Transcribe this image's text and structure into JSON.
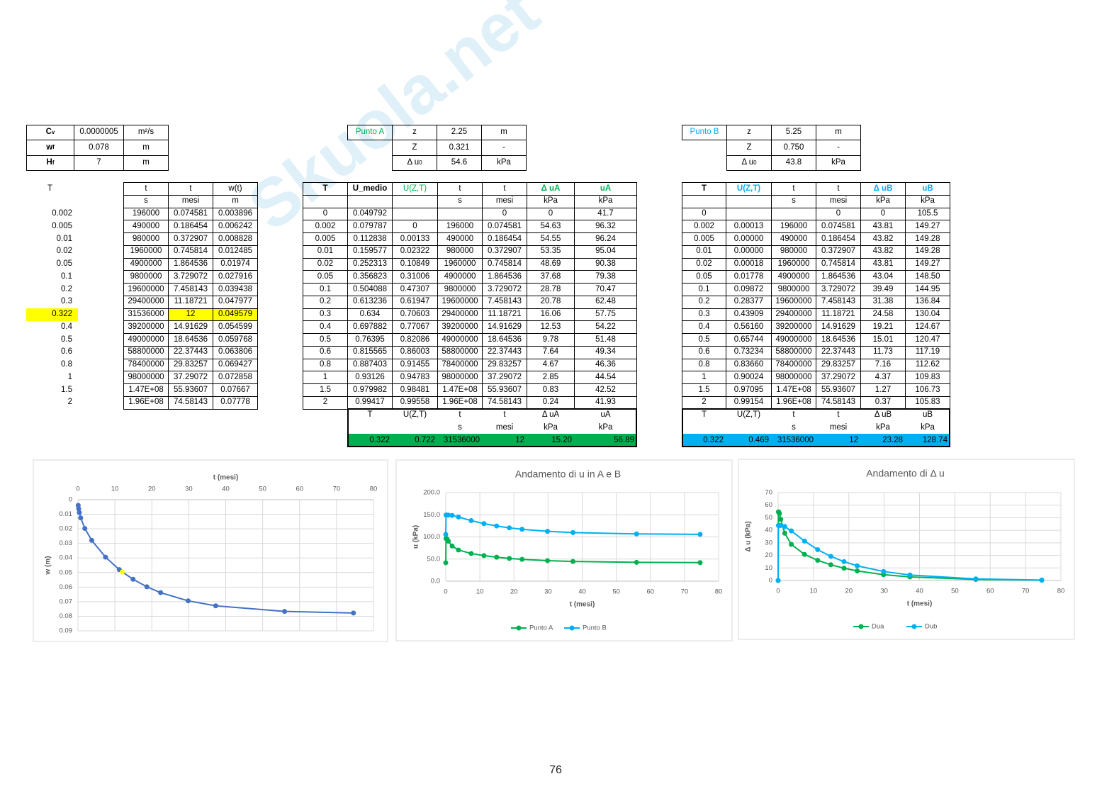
{
  "watermark": "Skuola.net",
  "page_number": "76",
  "tables": {
    "params": {
      "rows": [
        [
          {
            "text": "C",
            "sub": "v"
          },
          "0.0000005",
          "m²/s"
        ],
        [
          {
            "text": "w",
            "sub": "f"
          },
          "0.078",
          "m"
        ],
        [
          {
            "text": "H",
            "sub": "f"
          },
          "7",
          "m"
        ]
      ]
    },
    "punto_a": {
      "rows": [
        [
          "Punto A",
          "z",
          "2.25",
          "m"
        ],
        [
          null,
          "Z",
          "0.321",
          "-"
        ],
        [
          null,
          {
            "text": "Δ u",
            "sub": "0"
          },
          "54.6",
          "kPa"
        ]
      ]
    },
    "punto_b": {
      "rows": [
        [
          "Punto B",
          "z",
          "5.25",
          "m"
        ],
        [
          null,
          "Z",
          "0.750",
          "-"
        ],
        [
          null,
          {
            "text": "Δ u",
            "sub": "0"
          },
          "43.8",
          "kPa"
        ]
      ]
    },
    "w_table": {
      "rows": [
        [
          "T",
          "t",
          "t",
          "w(t)"
        ],
        [
          null,
          "s",
          "mesi",
          "m"
        ],
        [
          "0.002",
          "196000",
          "0.074581",
          "0.003896"
        ],
        [
          "0.005",
          "490000",
          "0.186454",
          "0.006242"
        ],
        [
          "0.01",
          "980000",
          "0.372907",
          "0.008828"
        ],
        [
          "0.02",
          "1960000",
          "0.745814",
          "0.012485"
        ],
        [
          "0.05",
          "4900000",
          "1.864536",
          "0.01974"
        ],
        [
          "0.1",
          "9800000",
          "3.729072",
          "0.027916"
        ],
        [
          "0.2",
          "19600000",
          "7.458143",
          "0.039438"
        ],
        [
          "0.3",
          "29400000",
          "11.18721",
          "0.047977"
        ],
        [
          "0.322",
          "31536000",
          "12",
          "0.049579"
        ],
        [
          "0.4",
          "39200000",
          "14.91629",
          "0.054599"
        ],
        [
          "0.5",
          "49000000",
          "18.64536",
          "0.059768"
        ],
        [
          "0.6",
          "58800000",
          "22.37443",
          "0.063806"
        ],
        [
          "0.8",
          "78400000",
          "29.83257",
          "0.069427"
        ],
        [
          "1",
          "98000000",
          "37.29072",
          "0.072858"
        ],
        [
          "1.5",
          "1.47E+08",
          "55.93607",
          "0.07667"
        ],
        [
          "2",
          "1.96E+08",
          "74.58143",
          "0.07778"
        ]
      ]
    },
    "table_a": {
      "rows": [
        [
          "T",
          "U_medio",
          "U(Z,T)",
          "t",
          "t",
          "Δ uA",
          "uA"
        ],
        [
          null,
          null,
          null,
          "s",
          "mesi",
          "kPa",
          "kPa"
        ],
        [
          "0",
          "0.049792",
          null,
          null,
          "0",
          "0",
          "41.7"
        ],
        [
          "0.002",
          "0.079787",
          "0",
          "196000",
          "0.074581",
          "54.63",
          "96.32"
        ],
        [
          "0.005",
          "0.112838",
          "0.00133",
          "490000",
          "0.186454",
          "54.55",
          "96.24"
        ],
        [
          "0.01",
          "0.159577",
          "0.02322",
          "980000",
          "0.372907",
          "53.35",
          "95.04"
        ],
        [
          "0.02",
          "0.252313",
          "0.10849",
          "1960000",
          "0.745814",
          "48.69",
          "90.38"
        ],
        [
          "0.05",
          "0.356823",
          "0.31006",
          "4900000",
          "1.864536",
          "37.68",
          "79.38"
        ],
        [
          "0.1",
          "0.504088",
          "0.47307",
          "9800000",
          "3.729072",
          "28.78",
          "70.47"
        ],
        [
          "0.2",
          "0.613236",
          "0.61947",
          "19600000",
          "7.458143",
          "20.78",
          "62.48"
        ],
        [
          "0.3",
          "0.634",
          "0.70603",
          "29400000",
          "11.18721",
          "16.06",
          "57.75"
        ],
        [
          "0.4",
          "0.697882",
          "0.77067",
          "39200000",
          "14.91629",
          "12.53",
          "54.22"
        ],
        [
          "0.5",
          "0.76395",
          "0.82086",
          "49000000",
          "18.64536",
          "9.78",
          "51.48"
        ],
        [
          "0.6",
          "0.815565",
          "0.86003",
          "58800000",
          "22.37443",
          "7.64",
          "49.34"
        ],
        [
          "0.8",
          "0.887403",
          "0.91455",
          "78400000",
          "29.83257",
          "4.67",
          "46.36"
        ],
        [
          "1",
          "0.93126",
          "0.94783",
          "98000000",
          "37.29072",
          "2.85",
          "44.54"
        ],
        [
          "1.5",
          "0.979982",
          "0.98481",
          "1.47E+08",
          "55.93607",
          "0.83",
          "42.52"
        ],
        [
          "2",
          "0.99417",
          "0.99558",
          "1.96E+08",
          "74.58143",
          "0.24",
          "41.93"
        ]
      ]
    },
    "summary_a": {
      "rows": [
        [
          "T",
          "U(Z,T)",
          "t",
          "t",
          "Δ uA",
          "uA"
        ],
        [
          null,
          null,
          "s",
          "mesi",
          "kPa",
          "kPa"
        ],
        [
          "0.322",
          "0.722",
          "31536000",
          "12",
          "15.20",
          "56.89"
        ]
      ]
    },
    "table_b": {
      "rows": [
        [
          "T",
          "U(Z,T)",
          "t",
          "t",
          "Δ uB",
          "uB"
        ],
        [
          null,
          null,
          "s",
          "mesi",
          "kPa",
          "kPa"
        ],
        [
          "0",
          null,
          null,
          "0",
          "0",
          "105.5"
        ],
        [
          "0.002",
          "0.00013",
          "196000",
          "0.074581",
          "43.81",
          "149.27"
        ],
        [
          "0.005",
          "0.00000",
          "490000",
          "0.186454",
          "43.82",
          "149.28"
        ],
        [
          "0.01",
          "0.00000",
          "980000",
          "0.372907",
          "43.82",
          "149.28"
        ],
        [
          "0.02",
          "0.00018",
          "1960000",
          "0.745814",
          "43.81",
          "149.27"
        ],
        [
          "0.05",
          "0.01778",
          "4900000",
          "1.864536",
          "43.04",
          "148.50"
        ],
        [
          "0.1",
          "0.09872",
          "9800000",
          "3.729072",
          "39.49",
          "144.95"
        ],
        [
          "0.2",
          "0.28377",
          "19600000",
          "7.458143",
          "31.38",
          "136.84"
        ],
        [
          "0.3",
          "0.43909",
          "29400000",
          "11.18721",
          "24.58",
          "130.04"
        ],
        [
          "0.4",
          "0.56160",
          "39200000",
          "14.91629",
          "19.21",
          "124.67"
        ],
        [
          "0.5",
          "0.65744",
          "49000000",
          "18.64536",
          "15.01",
          "120.47"
        ],
        [
          "0.6",
          "0.73234",
          "58800000",
          "22.37443",
          "11.73",
          "117.19"
        ],
        [
          "0.8",
          "0.83660",
          "78400000",
          "29.83257",
          "7.16",
          "112.62"
        ],
        [
          "1",
          "0.90024",
          "98000000",
          "37.29072",
          "4.37",
          "109.83"
        ],
        [
          "1.5",
          "0.97095",
          "1.47E+08",
          "55.93607",
          "1.27",
          "106.73"
        ],
        [
          "2",
          "0.99154",
          "1.96E+08",
          "74.58143",
          "0.37",
          "105.83"
        ]
      ]
    },
    "summary_b": {
      "rows": [
        [
          "T",
          "U(Z,T)",
          "t",
          "t",
          "Δ uB",
          "uB"
        ],
        [
          null,
          null,
          "s",
          "mesi",
          "kPa",
          "kPa"
        ],
        [
          "0.322",
          "0.469",
          "31536000",
          "12",
          "23.28",
          "128.74"
        ]
      ]
    }
  },
  "chart_data": [
    {
      "type": "line",
      "xlabel": "t (mesi)",
      "ylabel": "w (m)",
      "x": [
        0.074581,
        0.186454,
        0.372907,
        0.745814,
        1.864536,
        3.729072,
        7.458143,
        11.18721,
        12,
        14.91629,
        18.64536,
        22.37443,
        29.83257,
        37.29072,
        55.93607,
        74.58143
      ],
      "series": [
        {
          "color": "#4472c4",
          "values": [
            0.003896,
            0.006242,
            0.008828,
            0.012485,
            0.01974,
            0.027916,
            0.039438,
            0.047977,
            0.049579,
            0.054599,
            0.059768,
            0.063806,
            0.069427,
            0.072858,
            0.07667,
            0.07778
          ],
          "highlight_index": 8,
          "highlight_color": "#ffff00"
        }
      ],
      "xlim": [
        0,
        80
      ],
      "xticks": [
        0,
        10,
        20,
        30,
        40,
        50,
        60,
        70,
        80
      ],
      "ylim": [
        0,
        0.09
      ],
      "yticks": [
        0,
        0.01,
        0.02,
        0.03,
        0.04,
        0.05,
        0.06,
        0.07,
        0.08,
        0.09
      ],
      "x_axis_position": "top",
      "y_reversed": true,
      "grid": true
    },
    {
      "type": "line",
      "title": "Andamento di u in A e B",
      "xlabel": "t (mesi)",
      "ylabel": "u (kPa)",
      "x": [
        0,
        0.074581,
        0.186454,
        0.372907,
        0.745814,
        1.864536,
        3.729072,
        7.458143,
        11.18721,
        14.91629,
        18.64536,
        22.37443,
        29.83257,
        37.29072,
        55.93607,
        74.58143
      ],
      "series": [
        {
          "name": "Punto A",
          "color": "#00b050",
          "values": [
            41.7,
            96.32,
            96.24,
            95.04,
            90.38,
            79.38,
            70.47,
            62.48,
            57.75,
            54.22,
            51.48,
            49.34,
            46.36,
            44.54,
            42.52,
            41.93
          ]
        },
        {
          "name": "Punto B",
          "color": "#00b0f0",
          "values": [
            105.5,
            149.27,
            149.28,
            149.28,
            149.27,
            148.5,
            144.95,
            136.84,
            130.04,
            124.67,
            120.47,
            117.19,
            112.62,
            109.83,
            106.73,
            105.83
          ]
        }
      ],
      "xlim": [
        0,
        80
      ],
      "xticks": [
        0,
        10,
        20,
        30,
        40,
        50,
        60,
        70,
        80
      ],
      "ylim": [
        0,
        200
      ],
      "yticks": [
        {
          "value": 0,
          "label": "0.0"
        },
        {
          "value": 50,
          "label": "50.0"
        },
        {
          "value": 100,
          "label": "100.0"
        },
        {
          "value": 150,
          "label": "150.0"
        },
        {
          "value": 200,
          "label": "200.0"
        }
      ],
      "grid": true,
      "legend": "bottom"
    },
    {
      "type": "line",
      "title": "Andamento di  Δ u",
      "xlabel": "t (mesi)",
      "ylabel": "Δ u  (kPa)",
      "x": [
        0,
        0.074581,
        0.186454,
        0.372907,
        0.745814,
        1.864536,
        3.729072,
        7.458143,
        11.18721,
        14.91629,
        18.64536,
        22.37443,
        29.83257,
        37.29072,
        55.93607,
        74.58143
      ],
      "series": [
        {
          "name": "Dua",
          "color": "#00b050",
          "values": [
            0,
            54.63,
            54.55,
            53.35,
            48.69,
            37.68,
            28.78,
            20.78,
            16.06,
            12.53,
            9.78,
            7.64,
            4.67,
            2.85,
            0.83,
            0.24
          ]
        },
        {
          "name": "Dub",
          "color": "#00b0f0",
          "values": [
            0,
            43.81,
            43.82,
            43.82,
            43.81,
            43.04,
            39.49,
            31.38,
            24.58,
            19.21,
            15.01,
            11.73,
            7.16,
            4.37,
            1.27,
            0.37
          ]
        }
      ],
      "xlim": [
        0,
        80
      ],
      "xticks": [
        0,
        10,
        20,
        30,
        40,
        50,
        60,
        70,
        80
      ],
      "ylim": [
        0,
        70
      ],
      "yticks": [
        0,
        10,
        20,
        30,
        40,
        50,
        60,
        70
      ],
      "grid": true,
      "legend": "bottom"
    }
  ]
}
